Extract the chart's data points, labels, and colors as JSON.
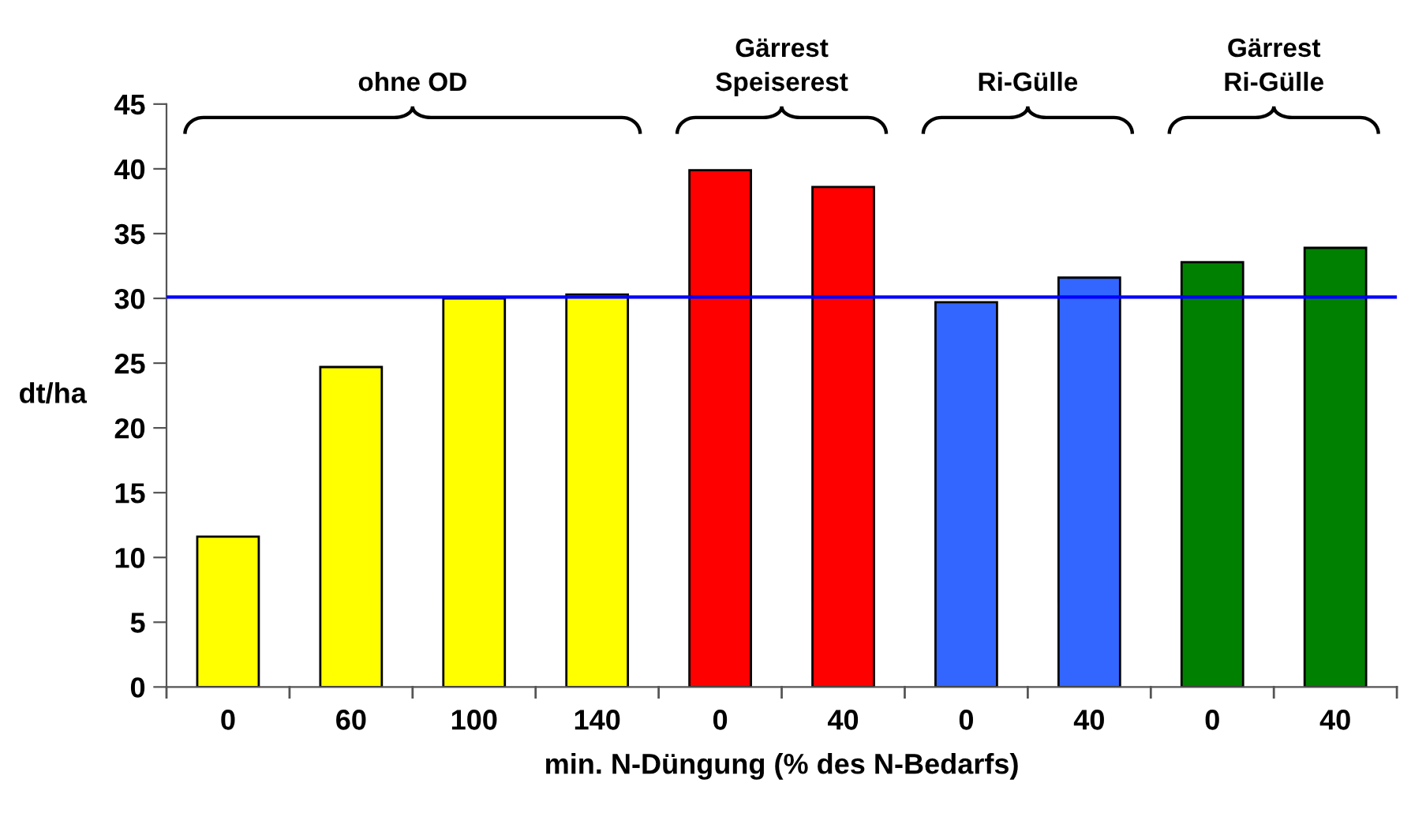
{
  "chart_data": {
    "type": "bar",
    "categories": [
      "0",
      "60",
      "100",
      "140",
      "0",
      "40",
      "0",
      "40",
      "0",
      "40"
    ],
    "values": [
      11.6,
      24.7,
      30.0,
      30.3,
      39.9,
      38.6,
      29.7,
      31.6,
      32.8,
      33.9
    ],
    "colors": [
      "#ffff00",
      "#ffff00",
      "#ffff00",
      "#ffff00",
      "#ff0000",
      "#ff0000",
      "#3366ff",
      "#3366ff",
      "#008000",
      "#008000"
    ],
    "xlabel": "min. N-Düngung (% des N-Bedarfs)",
    "ylabel": "dt/ha",
    "ylim": [
      0,
      45
    ],
    "yticks": [
      0,
      5,
      10,
      15,
      20,
      25,
      30,
      35,
      40,
      45
    ],
    "ref_lines": [
      {
        "axis": "y",
        "value": 30.1,
        "color": "#0000ff"
      }
    ],
    "annotations": [
      "ohne OD",
      "Gärrest\nSpeiserest",
      "Ri-Gülle",
      "Gärrest\nRi-Gülle"
    ],
    "grid": false,
    "legend": false
  }
}
